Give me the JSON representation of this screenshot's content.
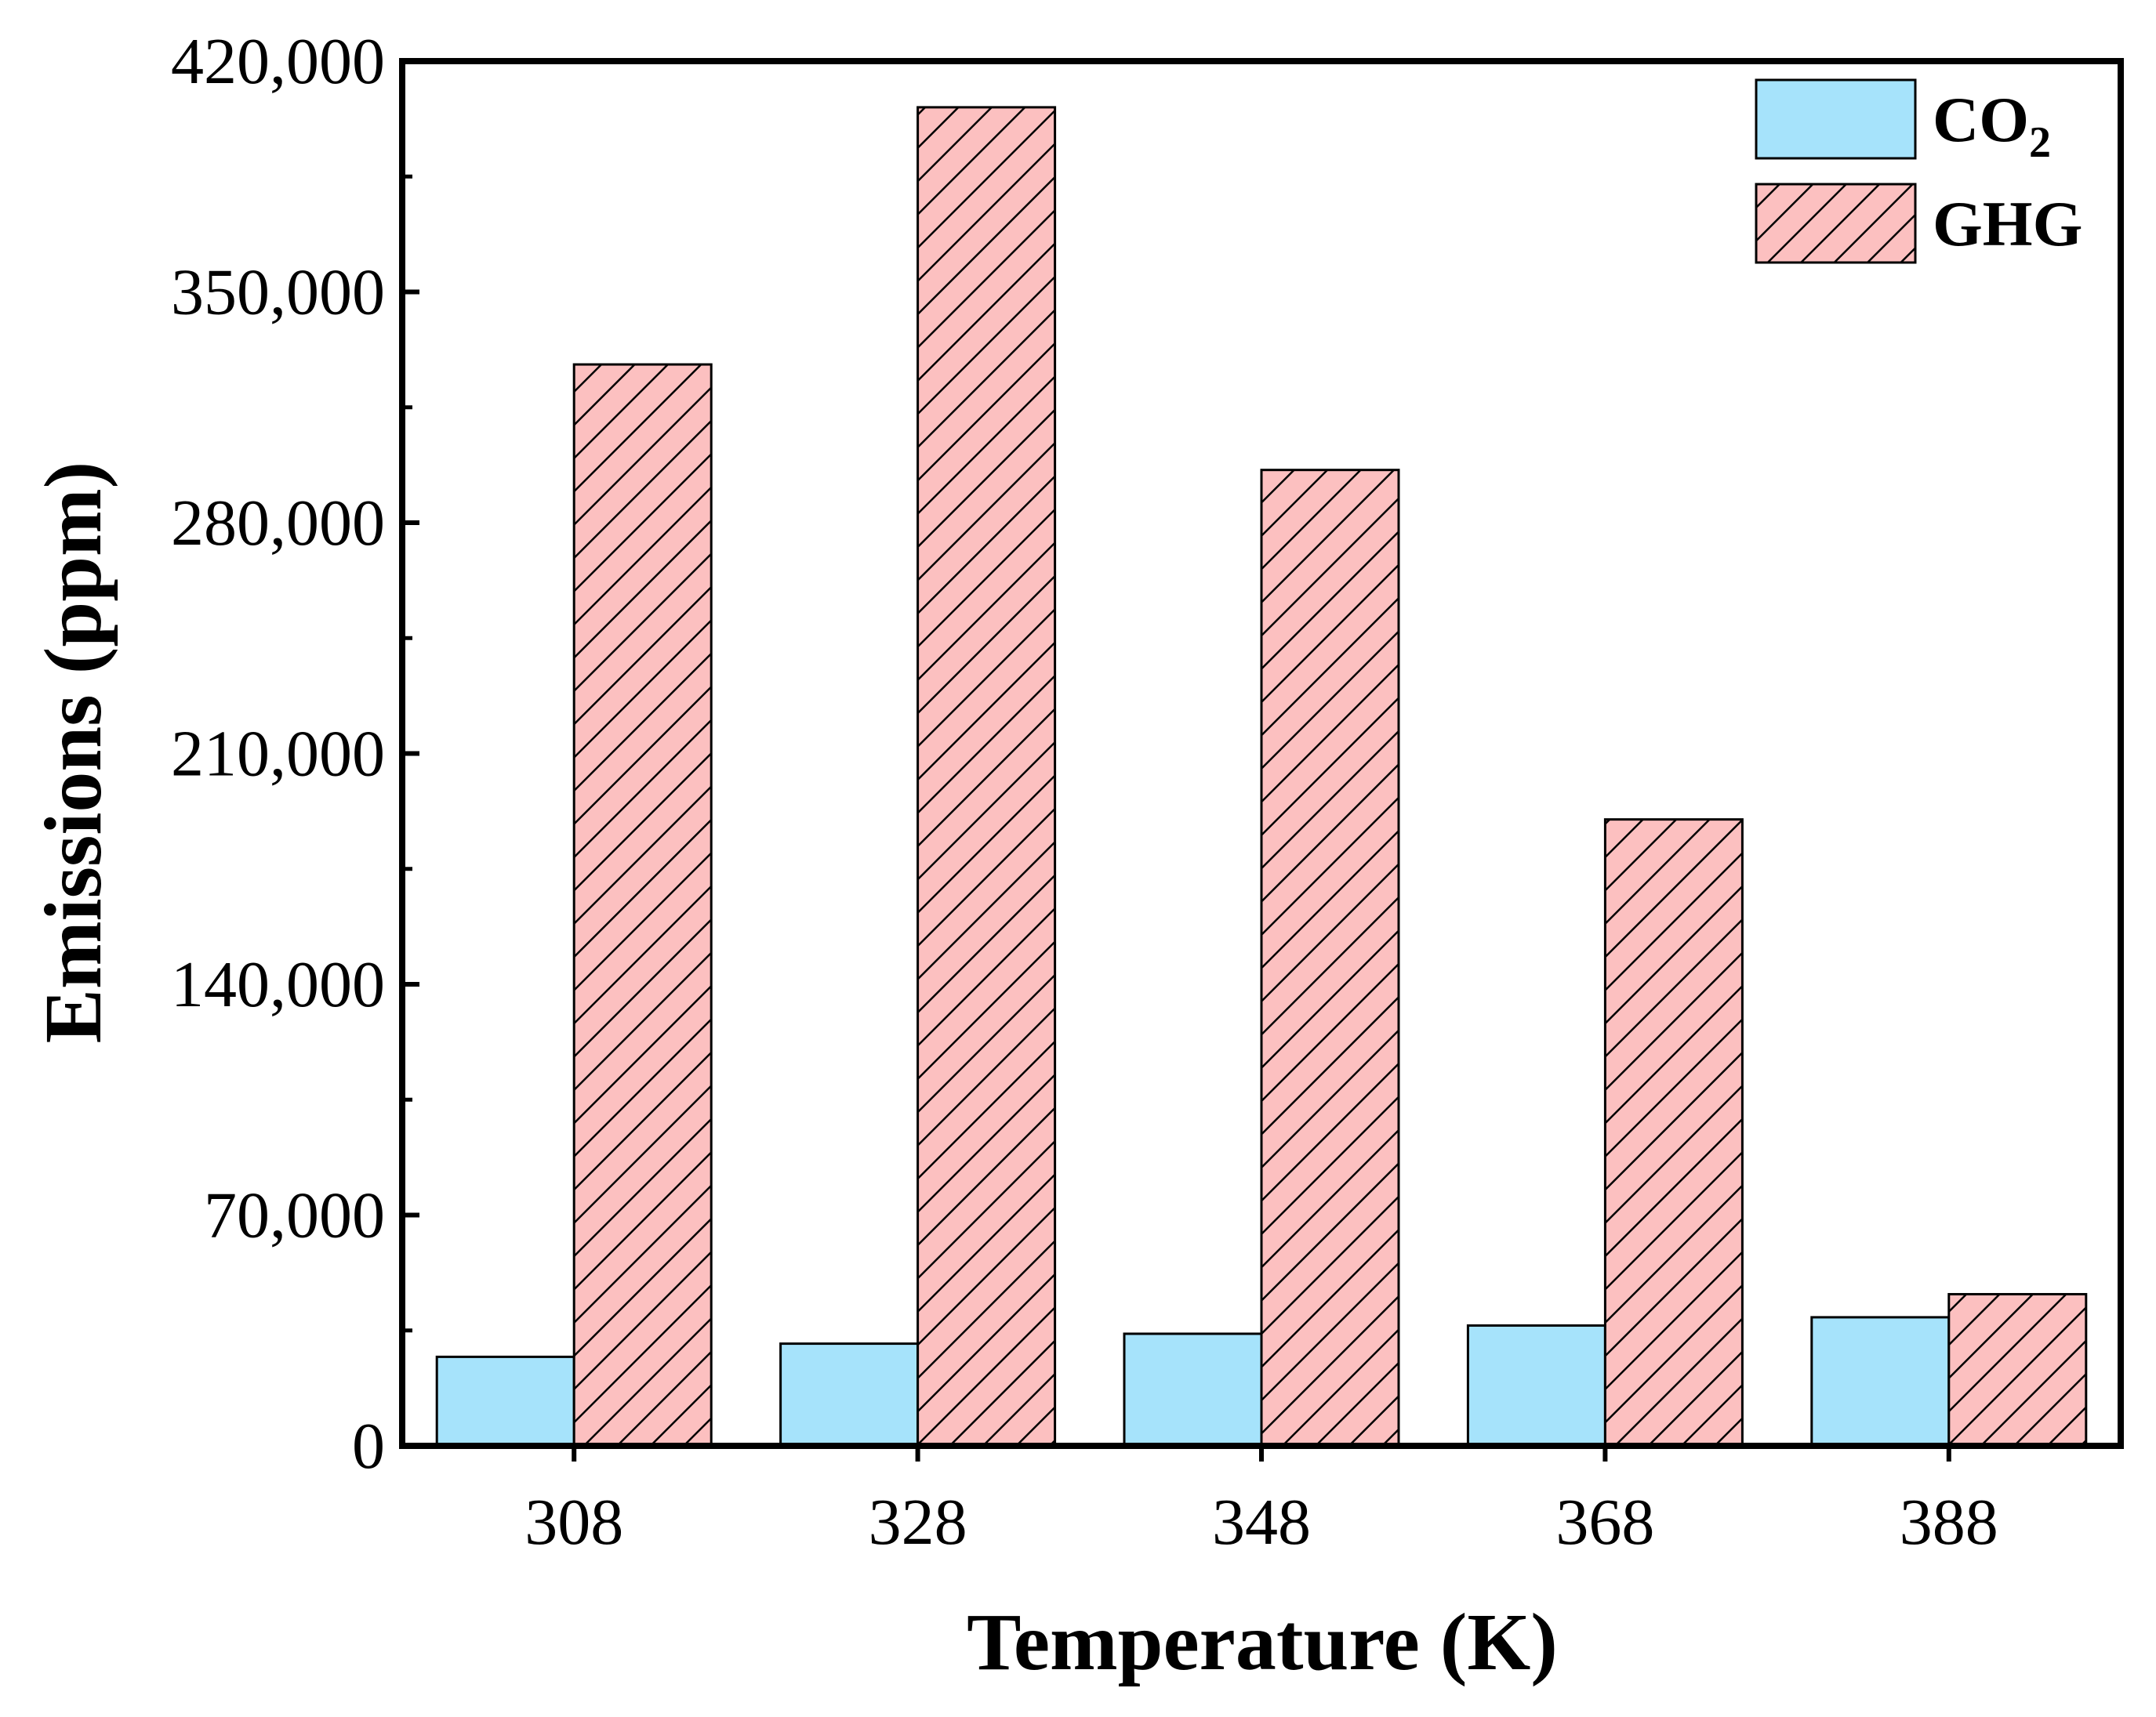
{
  "chart_data": {
    "type": "bar",
    "title": "",
    "xlabel": "Temperature (K)",
    "ylabel": "Emissions (ppm)",
    "categories": [
      "308",
      "328",
      "348",
      "368",
      "388"
    ],
    "ylim": [
      0,
      420000
    ],
    "yticks": [
      0,
      70000,
      140000,
      210000,
      280000,
      350000,
      420000
    ],
    "ytick_labels": [
      "0",
      "70,000",
      "140,000",
      "210,000",
      "280,000",
      "350,000",
      "420,000"
    ],
    "grid": false,
    "legend_position": "top-right",
    "series": [
      {
        "name": "CO2",
        "legend_text": "CO",
        "legend_subscript": "2",
        "values": [
          27000,
          31000,
          34000,
          36500,
          39000
        ],
        "color": "#a6e3fb",
        "pattern": "solid"
      },
      {
        "name": "GHG",
        "legend_text": "GHG",
        "legend_subscript": "",
        "values": [
          328000,
          406000,
          296000,
          190000,
          46000
        ],
        "color": "#fcc0c0",
        "pattern": "diagonal-hatch"
      }
    ]
  }
}
